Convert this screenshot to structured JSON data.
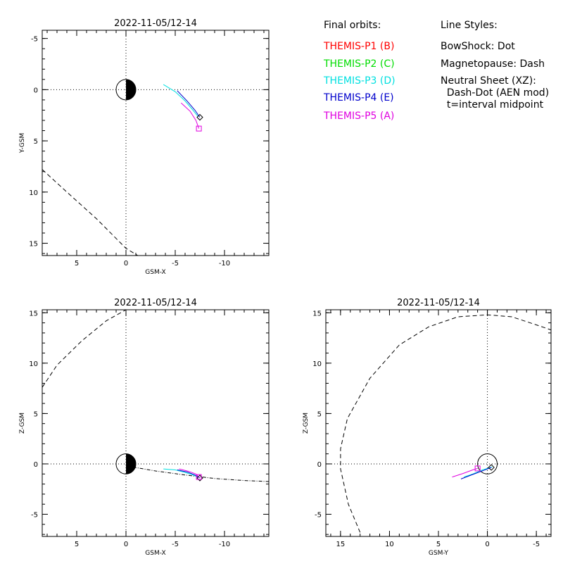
{
  "legend": {
    "orbits_title": "Final orbits:",
    "probes": [
      {
        "label": "THEMIS-P1 (B)",
        "color": "#ff0000"
      },
      {
        "label": "THEMIS-P2 (C)",
        "color": "#00dd00"
      },
      {
        "label": "THEMIS-P3 (D)",
        "color": "#00e0e0"
      },
      {
        "label": "THEMIS-P4 (E)",
        "color": "#0000cc"
      },
      {
        "label": "THEMIS-P5 (A)",
        "color": "#e000e0"
      }
    ],
    "styles_title": "Line Styles:",
    "styles": [
      "BowShock: Dot",
      "Magnetopause: Dash",
      "Neutral Sheet (XZ):",
      "  Dash-Dot (AEN mod)",
      "  t=interval midpoint"
    ]
  },
  "chart_data": [
    {
      "type": "line",
      "panel": "xy",
      "title": "2022-11-05/12-14",
      "xlabel": "GSM-X",
      "ylabel": "Y-GSM",
      "xlim": [
        8.5,
        -14.5
      ],
      "ylim": [
        16.2,
        -5.8
      ],
      "xticks": [
        5,
        0,
        -5,
        -10
      ],
      "xtick_labels": [
        "5",
        "0",
        "-5",
        "-10"
      ],
      "yticks": [
        -5,
        0,
        5,
        10,
        15
      ],
      "ytick_labels": [
        "-5",
        "0",
        "5",
        "10",
        "15"
      ],
      "earth": {
        "x": 0,
        "y": 0,
        "radius": 1,
        "shaded": "night"
      },
      "magnetopause": {
        "style": "dash",
        "points": [
          [
            8.5,
            7.8
          ],
          [
            6,
            10
          ],
          [
            3,
            12.6
          ],
          [
            0,
            15.5
          ],
          [
            -1.2,
            16.2
          ]
        ]
      },
      "orbits": [
        {
          "probe": "THEMIS-P3 (D)",
          "color": "#00e0e0",
          "points": [
            [
              -3.8,
              -0.5
            ],
            [
              -5,
              0.2
            ],
            [
              -6,
              1.1
            ],
            [
              -6.8,
              2.0
            ],
            [
              -7.3,
              2.6
            ]
          ]
        },
        {
          "probe": "THEMIS-P4 (E)",
          "color": "#0000cc",
          "points": [
            [
              -5.2,
              0.1
            ],
            [
              -6.2,
              1.1
            ],
            [
              -7.0,
              2.0
            ],
            [
              -7.5,
              2.7
            ]
          ],
          "end_marker": "diamond"
        },
        {
          "probe": "THEMIS-P5 (A)",
          "color": "#e000e0",
          "points": [
            [
              -5.6,
              1.3
            ],
            [
              -6.5,
              2.1
            ],
            [
              -7.1,
              3.0
            ],
            [
              -7.4,
              3.8
            ]
          ],
          "end_marker": "square"
        }
      ]
    },
    {
      "type": "line",
      "panel": "xz",
      "title": "2022-11-05/12-14",
      "xlabel": "GSM-X",
      "ylabel": "Z-GSM",
      "xlim": [
        8.5,
        -14.5
      ],
      "ylim": [
        -7.2,
        15.3
      ],
      "xticks": [
        5,
        0,
        -5,
        -10
      ],
      "xtick_labels": [
        "5",
        "0",
        "-5",
        "-10"
      ],
      "yticks": [
        -5,
        0,
        5,
        10,
        15
      ],
      "ytick_labels": [
        "-5",
        "0",
        "5",
        "10",
        "15"
      ],
      "earth": {
        "x": 0,
        "y": 0,
        "radius": 1,
        "shaded": "night"
      },
      "magnetopause": {
        "style": "dash",
        "points": [
          [
            8.5,
            7.6
          ],
          [
            7,
            9.8
          ],
          [
            4.5,
            12.2
          ],
          [
            2,
            14.2
          ],
          [
            0,
            15.3
          ]
        ]
      },
      "neutral_sheet": {
        "style": "dash-dot",
        "points": [
          [
            0,
            -0.2
          ],
          [
            -3,
            -0.7
          ],
          [
            -6,
            -1.1
          ],
          [
            -9,
            -1.45
          ],
          [
            -12,
            -1.65
          ],
          [
            -14.5,
            -1.75
          ]
        ]
      },
      "orbits": [
        {
          "probe": "THEMIS-P3 (D)",
          "color": "#00e0e0",
          "points": [
            [
              -3.8,
              -0.5
            ],
            [
              -5,
              -0.6
            ],
            [
              -6,
              -0.85
            ],
            [
              -6.8,
              -1.1
            ],
            [
              -7.3,
              -1.3
            ]
          ]
        },
        {
          "probe": "THEMIS-P4 (E)",
          "color": "#0000cc",
          "points": [
            [
              -5.2,
              -0.6
            ],
            [
              -6.2,
              -0.8
            ],
            [
              -7.0,
              -1.1
            ],
            [
              -7.5,
              -1.4
            ]
          ],
          "end_marker": "diamond"
        },
        {
          "probe": "THEMIS-P5 (A)",
          "color": "#e000e0",
          "points": [
            [
              -5.4,
              -0.5
            ],
            [
              -6.4,
              -0.75
            ],
            [
              -7.1,
              -1.0
            ],
            [
              -7.4,
              -1.3
            ]
          ],
          "end_marker": "square"
        }
      ]
    },
    {
      "type": "line",
      "panel": "yz",
      "title": "2022-11-05/12-14",
      "xlabel": "GSM-Y",
      "ylabel": "Z-GSM",
      "xlim": [
        16.5,
        -6.5
      ],
      "ylim": [
        -7.2,
        15.3
      ],
      "xticks": [
        15,
        10,
        5,
        0,
        -5
      ],
      "xtick_labels": [
        "15",
        "10",
        "5",
        "0",
        "-5"
      ],
      "yticks": [
        -5,
        0,
        5,
        10,
        15
      ],
      "ytick_labels": [
        "-5",
        "0",
        "5",
        "10",
        "15"
      ],
      "earth": {
        "x": 0,
        "y": 0,
        "radius": 1,
        "shaded": "none"
      },
      "magnetopause": {
        "style": "dash",
        "points": [
          [
            13,
            -6.8
          ],
          [
            14.2,
            -4
          ],
          [
            15,
            -0.5
          ],
          [
            15,
            1.5
          ],
          [
            14.3,
            4.5
          ],
          [
            12,
            8.5
          ],
          [
            9,
            11.8
          ],
          [
            6,
            13.6
          ],
          [
            3,
            14.6
          ],
          [
            0,
            14.8
          ],
          [
            -2.5,
            14.6
          ],
          [
            -5,
            13.8
          ],
          [
            -6.5,
            13.3
          ]
        ]
      },
      "orbits": [
        {
          "probe": "THEMIS-P3 (D)",
          "color": "#00e0e0",
          "points": [
            [
              2.4,
              -1.3
            ],
            [
              1.5,
              -1.0
            ],
            [
              0.5,
              -0.6
            ],
            [
              -0.5,
              -0.3
            ]
          ]
        },
        {
          "probe": "THEMIS-P4 (E)",
          "color": "#0000cc",
          "points": [
            [
              2.7,
              -1.5
            ],
            [
              1.5,
              -1.05
            ],
            [
              0.4,
              -0.65
            ],
            [
              -0.4,
              -0.35
            ]
          ],
          "end_marker": "diamond"
        },
        {
          "probe": "THEMIS-P5 (A)",
          "color": "#e000e0",
          "points": [
            [
              3.6,
              -1.3
            ],
            [
              2.5,
              -0.95
            ],
            [
              1.5,
              -0.6
            ],
            [
              1.0,
              -0.45
            ]
          ],
          "end_marker": "square"
        }
      ]
    }
  ]
}
